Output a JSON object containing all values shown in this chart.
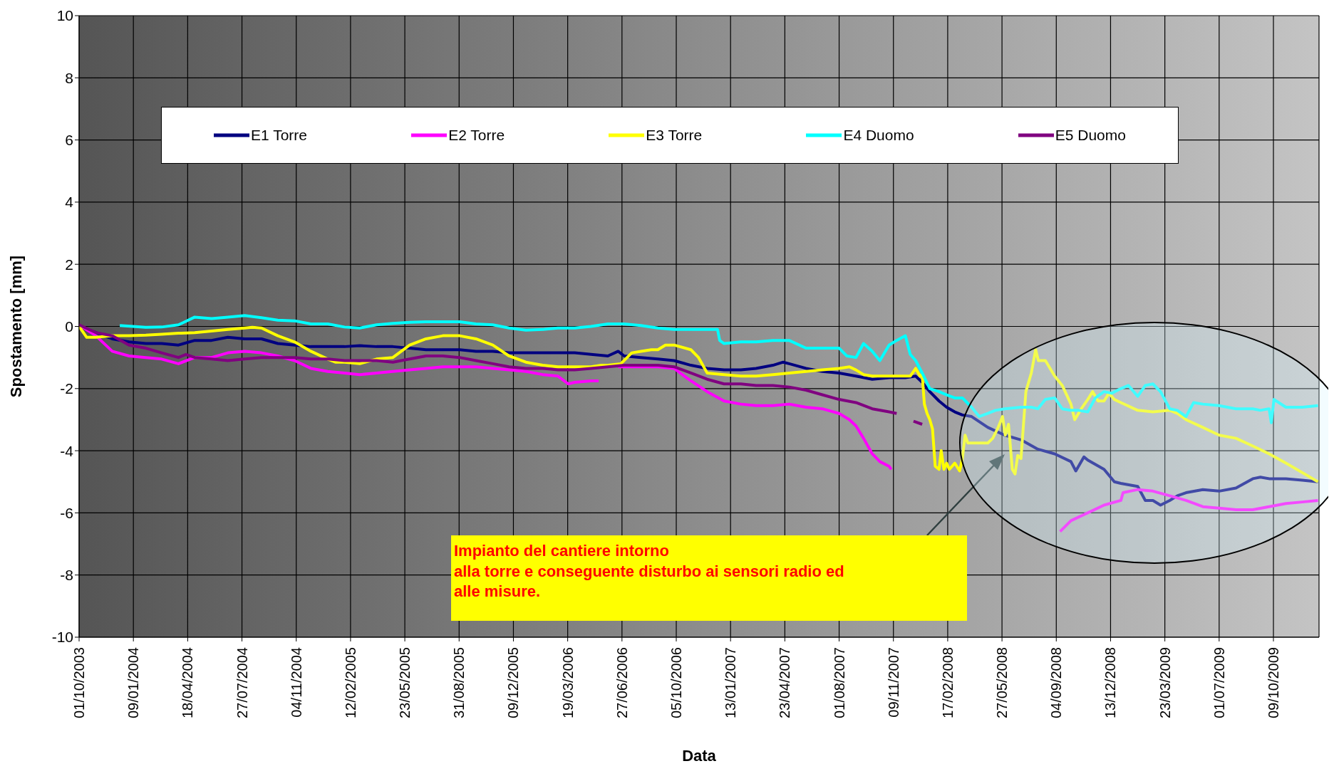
{
  "chart_data": {
    "type": "line",
    "xlabel": "Data",
    "ylabel": "Spostamento [mm]",
    "xlim": [
      "2003-10-01",
      "2010-01-01"
    ],
    "xticks": [
      {
        "value": "2003-10-01",
        "label": "01/10/2003"
      },
      {
        "value": "2004-01-09",
        "label": "09/01/2004"
      },
      {
        "value": "2004-04-18",
        "label": "18/04/2004"
      },
      {
        "value": "2004-07-27",
        "label": "27/07/2004"
      },
      {
        "value": "2004-11-04",
        "label": "04/11/2004"
      },
      {
        "value": "2005-02-12",
        "label": "12/02/2005"
      },
      {
        "value": "2005-05-23",
        "label": "23/05/2005"
      },
      {
        "value": "2005-08-31",
        "label": "31/08/2005"
      },
      {
        "value": "2005-12-09",
        "label": "09/12/2005"
      },
      {
        "value": "2006-03-19",
        "label": "19/03/2006"
      },
      {
        "value": "2006-06-27",
        "label": "27/06/2006"
      },
      {
        "value": "2006-10-05",
        "label": "05/10/2006"
      },
      {
        "value": "2007-01-13",
        "label": "13/01/2007"
      },
      {
        "value": "2007-04-23",
        "label": "23/04/2007"
      },
      {
        "value": "2007-08-01",
        "label": "01/08/2007"
      },
      {
        "value": "2007-11-09",
        "label": "09/11/2007"
      },
      {
        "value": "2008-02-17",
        "label": "17/02/2008"
      },
      {
        "value": "2008-05-27",
        "label": "27/05/2008"
      },
      {
        "value": "2008-09-04",
        "label": "04/09/2008"
      },
      {
        "value": "2008-12-13",
        "label": "13/12/2008"
      },
      {
        "value": "2009-03-23",
        "label": "23/03/2009"
      },
      {
        "value": "2009-07-01",
        "label": "01/07/2009"
      },
      {
        "value": "2009-10-09",
        "label": "09/10/2009"
      }
    ],
    "ylim": [
      -10,
      10
    ],
    "yticks": [
      -10,
      -8,
      -6,
      -4,
      -2,
      0,
      2,
      4,
      6,
      8,
      10
    ],
    "grid": true,
    "legend": "top",
    "marker": "none",
    "line_style": "solid",
    "annotations": [
      "Impianto del cantiere intorno\nalla torre e conseguente disturbo ai sensori radio ed\nalle misure."
    ],
    "series": [
      {
        "name": "E1 Torre",
        "color": "#000080",
        "x": [
          "2003-10-01",
          "2003-11-01",
          "2003-12-01",
          "2004-01-01",
          "2004-02-01",
          "2004-03-01",
          "2004-04-01",
          "2004-05-01",
          "2004-06-01",
          "2004-07-01",
          "2004-08-01",
          "2004-09-01",
          "2004-10-01",
          "2004-11-01",
          "2004-12-01",
          "2005-01-01",
          "2005-02-01",
          "2005-03-01",
          "2005-04-01",
          "2005-05-01",
          "2005-06-01",
          "2005-07-01",
          "2005-08-01",
          "2005-09-01",
          "2005-10-01",
          "2005-11-01",
          "2005-12-01",
          "2006-01-01",
          "2006-02-01",
          "2006-03-01",
          "2006-04-01",
          "2006-05-01",
          "2006-06-01",
          "2006-06-20",
          "2006-07-01",
          "2006-08-01",
          "2006-09-01",
          "2006-10-01",
          "2006-11-01",
          "2006-12-01",
          "2007-01-01",
          "2007-02-01",
          "2007-03-01",
          "2007-04-01",
          "2007-04-20",
          "2007-05-01",
          "2007-06-01",
          "2007-07-01",
          "2007-08-01",
          "2007-09-01",
          "2007-10-01",
          "2007-11-01",
          "2007-12-01",
          "2007-12-20",
          "2008-01-01",
          "2008-01-15",
          "2008-02-01",
          "2008-02-15",
          "2008-03-01",
          "2008-03-15",
          "2008-04-01",
          "2008-05-01",
          "2008-06-01",
          "2008-07-01",
          "2008-08-01",
          "2008-09-01",
          "2008-10-01",
          "2008-10-10",
          "2008-10-25",
          "2008-11-01",
          "2008-12-01",
          "2008-12-20",
          "2009-01-01",
          "2009-02-01",
          "2009-02-15",
          "2009-03-01",
          "2009-03-15",
          "2009-04-01",
          "2009-04-15",
          "2009-05-01",
          "2009-06-01",
          "2009-07-01",
          "2009-08-01",
          "2009-09-01",
          "2009-09-15",
          "2009-10-01",
          "2009-11-01",
          "2009-12-01",
          "2009-12-30"
        ],
        "values": [
          0,
          -0.2,
          -0.4,
          -0.5,
          -0.55,
          -0.55,
          -0.6,
          -0.45,
          -0.45,
          -0.35,
          -0.4,
          -0.4,
          -0.55,
          -0.6,
          -0.65,
          -0.65,
          -0.65,
          -0.62,
          -0.65,
          -0.65,
          -0.7,
          -0.75,
          -0.75,
          -0.75,
          -0.8,
          -0.8,
          -0.85,
          -0.85,
          -0.85,
          -0.85,
          -0.85,
          -0.9,
          -0.95,
          -0.8,
          -0.95,
          -1.0,
          -1.05,
          -1.1,
          -1.25,
          -1.35,
          -1.4,
          -1.4,
          -1.35,
          -1.25,
          -1.15,
          -1.2,
          -1.35,
          -1.45,
          -1.5,
          -1.6,
          -1.7,
          -1.65,
          -1.65,
          -1.6,
          -1.8,
          -2.1,
          -2.4,
          -2.6,
          -2.75,
          -2.85,
          -2.9,
          -3.25,
          -3.5,
          -3.65,
          -3.95,
          -4.1,
          -4.35,
          -4.65,
          -4.2,
          -4.3,
          -4.6,
          -5.0,
          -5.05,
          -5.15,
          -5.6,
          -5.6,
          -5.75,
          -5.6,
          -5.45,
          -5.35,
          -5.25,
          -5.3,
          -5.2,
          -4.9,
          -4.85,
          -4.9,
          -4.9,
          -4.95,
          -5.0
        ]
      },
      {
        "name": "E2 Torre",
        "color": "#ff00ff",
        "x": [
          "2003-10-01",
          "2003-11-01",
          "2003-12-01",
          "2004-01-01",
          "2004-02-01",
          "2004-03-01",
          "2004-04-01",
          "2004-05-01",
          "2004-06-01",
          "2004-07-01",
          "2004-08-01",
          "2004-09-01",
          "2004-10-01",
          "2004-11-01",
          "2004-12-01",
          "2005-01-01",
          "2005-02-01",
          "2005-03-01",
          "2005-04-01",
          "2005-05-01",
          "2005-06-01",
          "2005-07-01",
          "2005-08-01",
          "2005-09-01",
          "2005-10-01",
          "2005-11-01",
          "2005-12-01",
          "2006-01-01",
          "2006-02-01",
          "2006-03-01",
          "2006-03-20",
          "2006-04-01",
          "2006-05-01",
          "2006-05-15",
          "2006-06-01",
          "2006-06-20",
          "2006-07-01",
          "2006-08-01",
          "2006-09-01",
          "2006-10-01",
          "2006-10-20",
          "2006-11-01",
          "2006-12-01",
          "2007-01-01",
          "2007-02-01",
          "2007-03-01",
          "2007-04-01",
          "2007-05-01",
          "2007-06-01",
          "2007-07-01",
          "2007-08-01",
          "2007-08-20",
          "2007-09-01",
          "2007-09-15",
          "2007-10-01",
          "2007-10-15",
          "2007-11-01",
          "2007-11-05",
          "2008-01-01",
          "2008-09-11",
          "2008-10-01",
          "2008-11-01",
          "2008-12-01",
          "2009-01-01",
          "2009-01-05",
          "2009-02-01",
          "2009-03-01",
          "2009-04-01",
          "2009-05-01",
          "2009-06-01",
          "2009-07-01",
          "2009-08-01",
          "2009-09-01",
          "2009-10-01",
          "2009-11-01",
          "2009-12-01",
          "2009-12-30"
        ],
        "values": [
          0.05,
          -0.3,
          -0.8,
          -0.95,
          -1.0,
          -1.05,
          -1.2,
          -1.0,
          -1.0,
          -0.85,
          -0.8,
          -0.85,
          -0.95,
          -1.1,
          -1.35,
          -1.45,
          -1.5,
          -1.55,
          -1.5,
          -1.45,
          -1.4,
          -1.35,
          -1.3,
          -1.3,
          -1.3,
          -1.35,
          -1.4,
          -1.45,
          -1.55,
          -1.6,
          -1.85,
          -1.8,
          -1.75,
          -1.75,
          null,
          -1.3,
          -1.3,
          -1.3,
          -1.3,
          -1.35,
          -1.6,
          -1.75,
          -2.1,
          -2.4,
          -2.5,
          -2.55,
          -2.55,
          -2.5,
          -2.6,
          -2.65,
          -2.8,
          -3.0,
          -3.2,
          -3.6,
          -4.1,
          -4.35,
          -4.5,
          -4.6,
          null,
          -6.6,
          -6.25,
          -6.0,
          -5.75,
          -5.6,
          -5.35,
          -5.25,
          -5.3,
          -5.45,
          -5.6,
          -5.8,
          -5.85,
          -5.9,
          -5.9,
          -5.8,
          -5.7,
          -5.65,
          -5.6
        ]
      },
      {
        "name": "E3 Torre",
        "color": "#ffff00",
        "x": [
          "2003-10-01",
          "2003-10-15",
          "2003-11-01",
          "2003-12-01",
          "2004-01-01",
          "2004-02-01",
          "2004-03-01",
          "2004-04-01",
          "2004-05-01",
          "2004-06-01",
          "2004-07-01",
          "2004-08-01",
          "2004-08-15",
          "2004-09-01",
          "2004-10-01",
          "2004-11-01",
          "2004-12-01",
          "2005-01-01",
          "2005-01-15",
          "2005-02-01",
          "2005-03-01",
          "2005-04-01",
          "2005-05-01",
          "2005-06-01",
          "2005-07-01",
          "2005-08-01",
          "2005-09-01",
          "2005-10-01",
          "2005-11-01",
          "2005-12-01",
          "2006-01-01",
          "2006-02-01",
          "2006-03-01",
          "2006-04-01",
          "2006-05-01",
          "2006-05-20",
          "2006-06-01",
          "2006-06-25",
          "2006-07-15",
          "2006-08-01",
          "2006-08-20",
          "2006-09-01",
          "2006-09-15",
          "2006-10-01",
          "2006-11-01",
          "2006-11-15",
          "2006-12-01",
          "2007-01-01",
          "2007-02-01",
          "2007-03-01",
          "2007-04-01",
          "2007-05-01",
          "2007-06-01",
          "2007-07-01",
          "2007-08-01",
          "2007-08-20",
          "2007-09-01",
          "2007-09-15",
          "2007-10-01",
          "2007-11-01",
          "2007-12-01",
          "2007-12-10",
          "2007-12-20",
          "2007-12-28",
          "2008-01-01",
          "2008-01-05",
          "2008-01-10",
          "2008-01-15",
          "2008-01-20",
          "2008-01-25",
          "2008-02-01",
          "2008-02-05",
          "2008-02-10",
          "2008-02-15",
          "2008-02-20",
          "2008-03-01",
          "2008-03-10",
          "2008-03-15",
          "2008-03-20",
          "2008-03-25",
          "2008-04-01",
          "2008-04-15",
          "2008-05-01",
          "2008-05-10",
          "2008-05-20",
          "2008-05-28",
          "2008-06-02",
          "2008-06-08",
          "2008-06-15",
          "2008-06-20",
          "2008-06-25",
          "2008-07-01",
          "2008-07-10",
          "2008-07-20",
          "2008-07-28",
          "2008-08-02",
          "2008-08-15",
          "2008-09-01",
          "2008-09-15",
          "2008-10-01",
          "2008-10-08",
          "2008-10-20",
          "2008-11-01",
          "2008-11-10",
          "2008-11-20",
          "2008-12-01",
          "2008-12-10",
          "2008-12-20",
          "2009-01-01",
          "2009-02-01",
          "2009-03-01",
          "2009-04-01",
          "2009-04-15",
          "2009-05-01",
          "2009-06-01",
          "2009-07-01",
          "2009-08-01",
          "2009-09-01",
          "2009-10-01",
          "2009-11-01",
          "2009-12-01",
          "2009-12-30"
        ],
        "values": [
          0,
          -0.35,
          -0.35,
          -0.3,
          -0.3,
          -0.28,
          -0.25,
          -0.22,
          -0.2,
          -0.15,
          -0.1,
          -0.05,
          -0.03,
          -0.05,
          -0.3,
          -0.5,
          -0.8,
          -1.05,
          -1.15,
          -1.15,
          -1.2,
          -1.05,
          -1.0,
          -0.6,
          -0.4,
          -0.3,
          -0.3,
          -0.4,
          -0.6,
          -0.95,
          -1.15,
          -1.25,
          -1.3,
          -1.3,
          -1.3,
          -1.25,
          -1.25,
          -1.2,
          -0.85,
          -0.8,
          -0.75,
          -0.75,
          -0.6,
          -0.6,
          -0.75,
          -1.0,
          -1.5,
          -1.55,
          -1.6,
          -1.6,
          -1.55,
          -1.5,
          -1.45,
          -1.4,
          -1.35,
          -1.3,
          -1.4,
          -1.55,
          -1.6,
          -1.6,
          -1.6,
          -1.6,
          -1.35,
          -1.6,
          -1.55,
          -2.5,
          -2.8,
          -3.0,
          -3.3,
          -4.5,
          -4.6,
          -4.0,
          -4.6,
          -4.4,
          -4.6,
          -4.4,
          -4.65,
          -4.25,
          -3.5,
          -3.75,
          -3.75,
          -3.75,
          -3.75,
          -3.6,
          -3.25,
          -2.9,
          -3.5,
          -3.15,
          -4.6,
          -4.75,
          -4.15,
          -4.25,
          -2.1,
          -1.5,
          -0.75,
          -1.1,
          -1.1,
          -1.6,
          -1.9,
          -2.5,
          -3.0,
          -2.65,
          -2.35,
          -2.1,
          -2.4,
          -2.4,
          -2.15,
          -2.35,
          -2.45,
          -2.7,
          -2.75,
          -2.7,
          -2.8,
          -3.0,
          -3.25,
          -3.5,
          -3.6,
          -3.85,
          -4.1,
          -4.4,
          -4.7,
          -5.0
        ]
      },
      {
        "name": "E4 Duomo",
        "color": "#00ffff",
        "x": [
          "2003-12-15",
          "2004-02-01",
          "2004-03-01",
          "2004-04-01",
          "2004-05-01",
          "2004-06-01",
          "2004-07-01",
          "2004-08-01",
          "2004-09-01",
          "2004-10-01",
          "2004-11-01",
          "2004-12-01",
          "2005-01-01",
          "2005-02-01",
          "2005-03-01",
          "2005-04-01",
          "2005-05-01",
          "2005-06-01",
          "2005-07-01",
          "2005-08-01",
          "2005-09-01",
          "2005-10-01",
          "2005-11-01",
          "2005-12-01",
          "2006-01-01",
          "2006-02-01",
          "2006-03-01",
          "2006-04-01",
          "2006-05-01",
          "2006-06-01",
          "2006-07-01",
          "2006-08-01",
          "2006-09-01",
          "2006-10-01",
          "2006-11-01",
          "2006-12-01",
          "2006-12-20",
          "2006-12-24",
          "2007-01-01",
          "2007-02-01",
          "2007-03-01",
          "2007-04-01",
          "2007-05-01",
          "2007-06-01",
          "2007-07-01",
          "2007-08-01",
          "2007-08-15",
          "2007-09-01",
          "2007-09-15",
          "2007-10-01",
          "2007-10-15",
          "2007-11-01",
          "2007-11-15",
          "2007-12-01",
          "2007-12-10",
          "2007-12-20",
          "2008-01-01",
          "2008-01-15",
          "2008-02-01",
          "2008-02-15",
          "2008-03-01",
          "2008-03-15",
          "2008-04-01",
          "2008-04-15",
          "2008-05-01",
          "2008-05-15",
          "2008-06-01",
          "2008-07-01",
          "2008-07-20",
          "2008-08-01",
          "2008-08-15",
          "2008-09-01",
          "2008-09-15",
          "2008-10-01",
          "2008-10-15",
          "2008-11-01",
          "2008-11-15",
          "2008-12-01",
          "2008-12-15",
          "2009-01-01",
          "2009-01-15",
          "2009-02-01",
          "2009-02-15",
          "2009-03-01",
          "2009-03-15",
          "2009-04-01",
          "2009-04-15",
          "2009-05-01",
          "2009-05-15",
          "2009-06-01",
          "2009-07-01",
          "2009-08-01",
          "2009-09-01",
          "2009-09-15",
          "2009-10-01",
          "2009-10-05",
          "2009-10-10",
          "2009-11-01",
          "2009-12-01",
          "2009-12-30"
        ],
        "values": [
          0.03,
          -0.03,
          -0.02,
          0.05,
          0.3,
          0.25,
          0.3,
          0.35,
          0.28,
          0.2,
          0.18,
          0.08,
          0.08,
          -0.02,
          -0.05,
          0.05,
          0.1,
          0.13,
          0.15,
          0.15,
          0.15,
          0.08,
          0.05,
          -0.05,
          -0.12,
          -0.1,
          -0.05,
          -0.05,
          0,
          0.08,
          0.08,
          0.03,
          -0.05,
          -0.1,
          -0.1,
          -0.1,
          -0.1,
          -0.45,
          -0.55,
          -0.5,
          -0.5,
          -0.45,
          -0.45,
          -0.7,
          -0.7,
          -0.7,
          -0.95,
          -1.0,
          -0.55,
          -0.8,
          -1.1,
          -0.6,
          -0.45,
          -0.3,
          -0.9,
          -1.1,
          -1.5,
          -2.0,
          -2.1,
          -2.2,
          -2.3,
          -2.3,
          -2.6,
          -2.9,
          -2.8,
          -2.7,
          -2.65,
          -2.6,
          -2.6,
          -2.65,
          -2.35,
          -2.3,
          -2.65,
          -2.7,
          -2.7,
          -2.75,
          -2.3,
          -2.1,
          -2.15,
          -2.0,
          -1.9,
          -2.25,
          -1.9,
          -1.85,
          -2.1,
          -2.65,
          -2.7,
          -2.9,
          -2.45,
          -2.5,
          -2.55,
          -2.65,
          -2.65,
          -2.7,
          -2.65,
          -3.1,
          -2.35,
          -2.6,
          -2.6,
          -2.55
        ]
      },
      {
        "name": "E5 Duomo",
        "color": "#800080",
        "x": [
          "2003-10-01",
          "2003-11-01",
          "2003-12-01",
          "2004-01-01",
          "2004-02-01",
          "2004-03-01",
          "2004-04-01",
          "2004-04-15",
          "2004-05-01",
          "2004-06-01",
          "2004-07-01",
          "2004-08-01",
          "2004-09-01",
          "2004-10-01",
          "2004-11-01",
          "2004-12-01",
          "2005-01-01",
          "2005-02-01",
          "2005-03-01",
          "2005-04-01",
          "2005-05-01",
          "2005-06-01",
          "2005-07-01",
          "2005-08-01",
          "2005-09-01",
          "2005-10-01",
          "2005-11-01",
          "2005-12-01",
          "2006-01-01",
          "2006-02-01",
          "2006-03-01",
          "2006-04-01",
          "2006-05-01",
          "2006-06-01",
          "2006-07-01",
          "2006-08-01",
          "2006-09-01",
          "2006-10-01",
          "2006-11-01",
          "2006-12-01",
          "2007-01-01",
          "2007-02-01",
          "2007-03-01",
          "2007-04-01",
          "2007-05-01",
          "2007-06-01",
          "2007-07-01",
          "2007-08-01",
          "2007-09-01",
          "2007-10-01",
          "2007-11-01",
          "2007-11-15",
          "2007-12-01",
          "2007-12-16",
          "2008-01-01"
        ],
        "values": [
          0.05,
          -0.2,
          -0.3,
          -0.6,
          -0.7,
          -0.85,
          -1.0,
          -0.9,
          -1.0,
          -1.05,
          -1.1,
          -1.05,
          -1.0,
          -1.0,
          -1.0,
          -1.05,
          -1.05,
          -1.1,
          -1.1,
          -1.1,
          -1.15,
          -1.05,
          -0.95,
          -0.95,
          -1.0,
          -1.1,
          -1.2,
          -1.3,
          -1.35,
          -1.35,
          -1.4,
          -1.4,
          -1.35,
          -1.3,
          -1.25,
          -1.25,
          -1.25,
          -1.3,
          -1.5,
          -1.7,
          -1.85,
          -1.85,
          -1.9,
          -1.9,
          -1.95,
          -2.05,
          -2.2,
          -2.35,
          -2.45,
          -2.65,
          -2.75,
          -2.8,
          null,
          -3.05,
          -3.15
        ]
      }
    ]
  }
}
